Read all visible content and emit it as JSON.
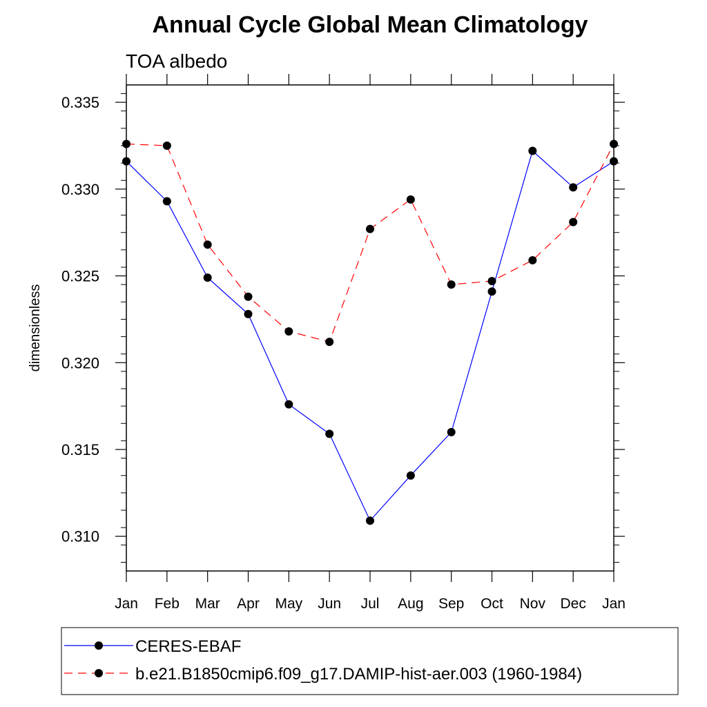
{
  "chart_data": {
    "type": "line",
    "title": "Annual Cycle Global Mean Climatology",
    "subtitle": "TOA albedo",
    "ylabel": "dimensionless",
    "xlabel": "",
    "categories": [
      "Jan",
      "Feb",
      "Mar",
      "Apr",
      "May",
      "Jun",
      "Jul",
      "Aug",
      "Sep",
      "Oct",
      "Nov",
      "Dec",
      "Jan"
    ],
    "ylim": [
      0.308,
      0.336
    ],
    "yticks": [
      0.31,
      0.315,
      0.32,
      0.325,
      0.33,
      0.335
    ],
    "ytick_labels": [
      "0.310",
      "0.315",
      "0.320",
      "0.325",
      "0.330",
      "0.335"
    ],
    "grid": false,
    "legend_position": "bottom",
    "series": [
      {
        "name": "CERES-EBAF",
        "color": "#0000ff",
        "dash": "solid",
        "values": [
          0.3316,
          0.3293,
          0.3249,
          0.3228,
          0.3176,
          0.3159,
          0.3109,
          0.3135,
          0.316,
          0.3241,
          0.3322,
          0.3301,
          0.3316
        ]
      },
      {
        "name": "b.e21.B1850cmip6.f09_g17.DAMIP-hist-aer.003 (1960-1984)",
        "color": "#ff0000",
        "dash": "dashed",
        "values": [
          0.3326,
          0.3325,
          0.3268,
          0.3238,
          0.3218,
          0.3212,
          0.3277,
          0.3294,
          0.3245,
          0.3247,
          0.3259,
          0.3281,
          0.3326
        ]
      }
    ],
    "marker_color": "#000000"
  }
}
